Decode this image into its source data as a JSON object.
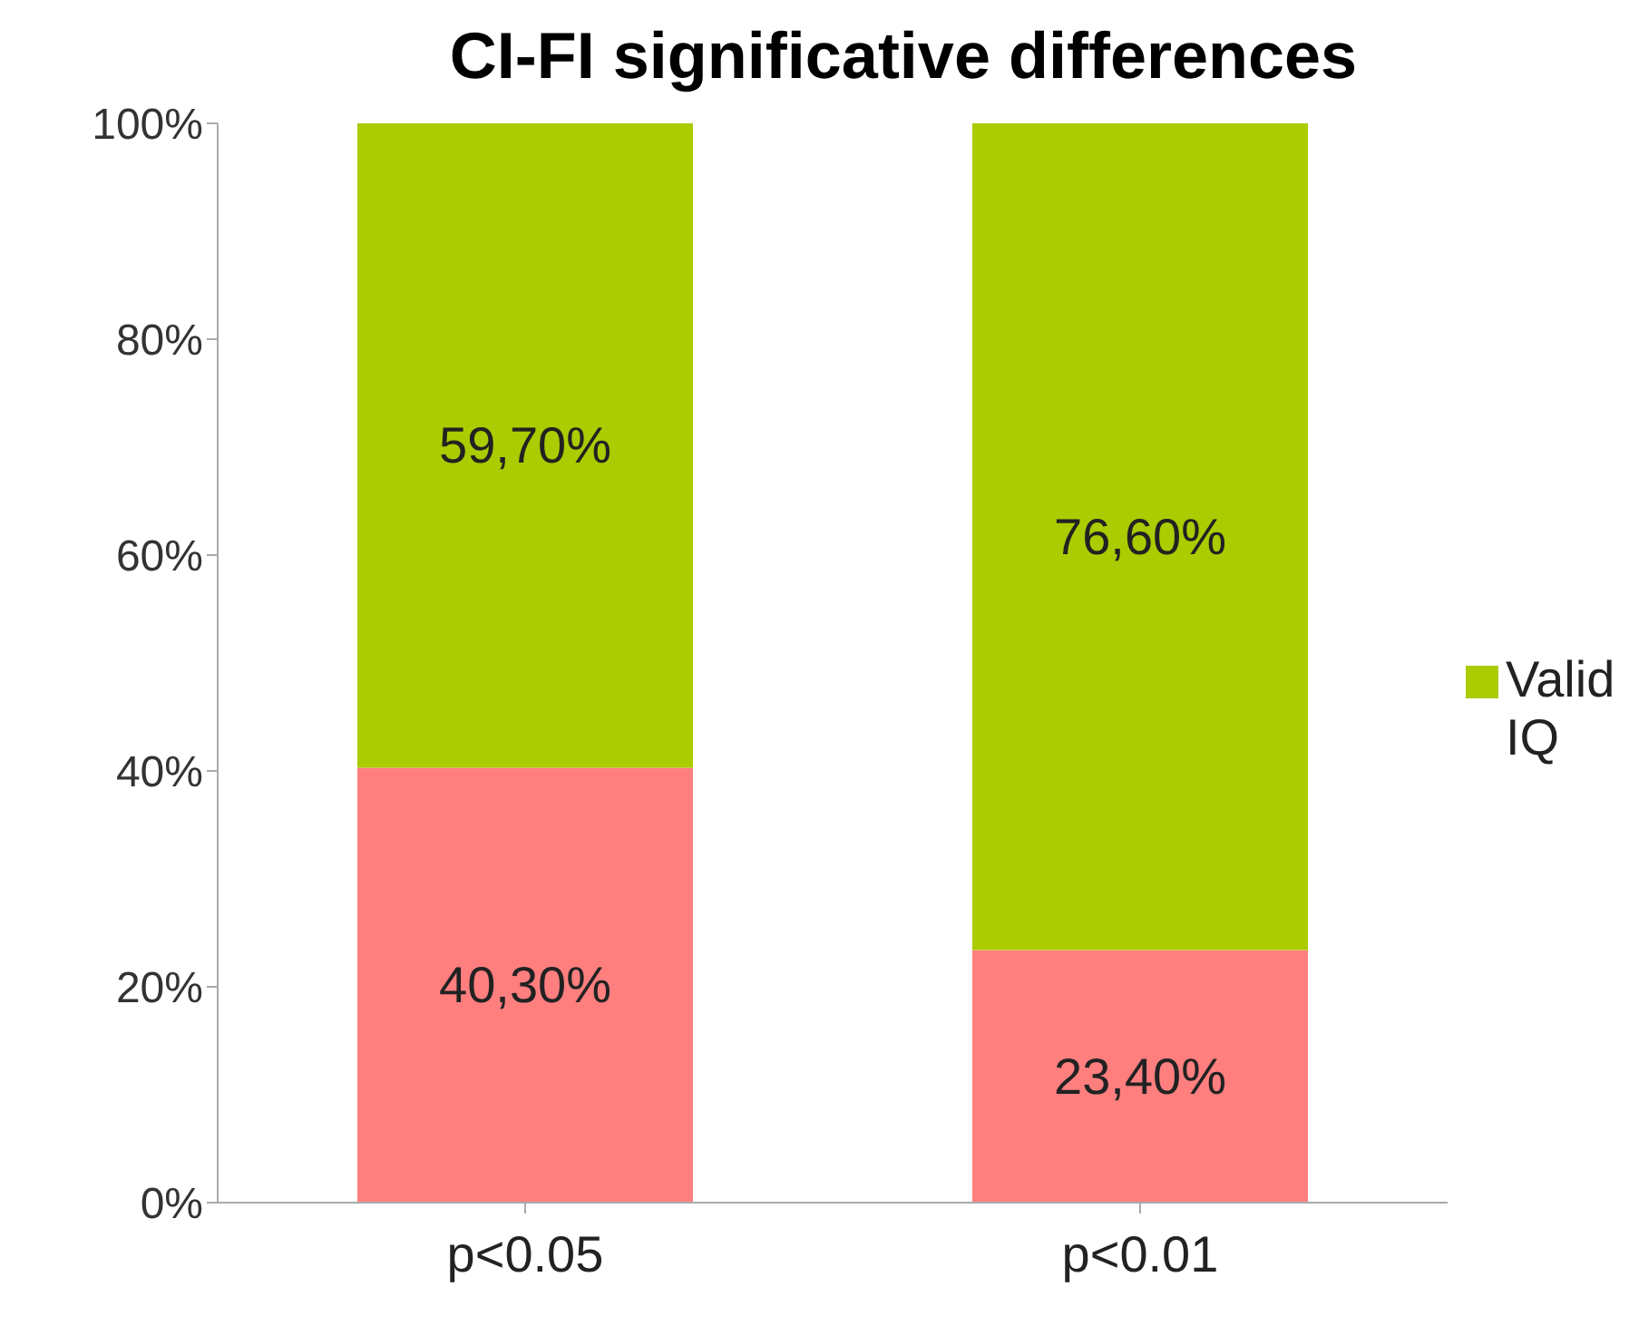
{
  "chart_data": {
    "type": "bar",
    "title": "CI-FI significative differences",
    "categories": [
      "p<0.05",
      "p<0.01"
    ],
    "stacked": true,
    "series": [
      {
        "color": "#ff7f7f",
        "values": [
          40.3,
          23.4
        ],
        "value_labels": [
          "40,30%",
          "23,40%"
        ]
      },
      {
        "name": "Valid IQ",
        "color": "#aacc00",
        "values": [
          59.7,
          76.6
        ],
        "value_labels": [
          "59,70%",
          "76,60%"
        ]
      }
    ],
    "ylim": [
      0,
      100
    ],
    "yticks": [
      {
        "value": 0,
        "label": "0%"
      },
      {
        "value": 20,
        "label": "20%"
      },
      {
        "value": 40,
        "label": "40%"
      },
      {
        "value": 60,
        "label": "60%"
      },
      {
        "value": 80,
        "label": "80%"
      },
      {
        "value": 100,
        "label": "100%"
      }
    ],
    "grid": false,
    "legend": "right"
  }
}
